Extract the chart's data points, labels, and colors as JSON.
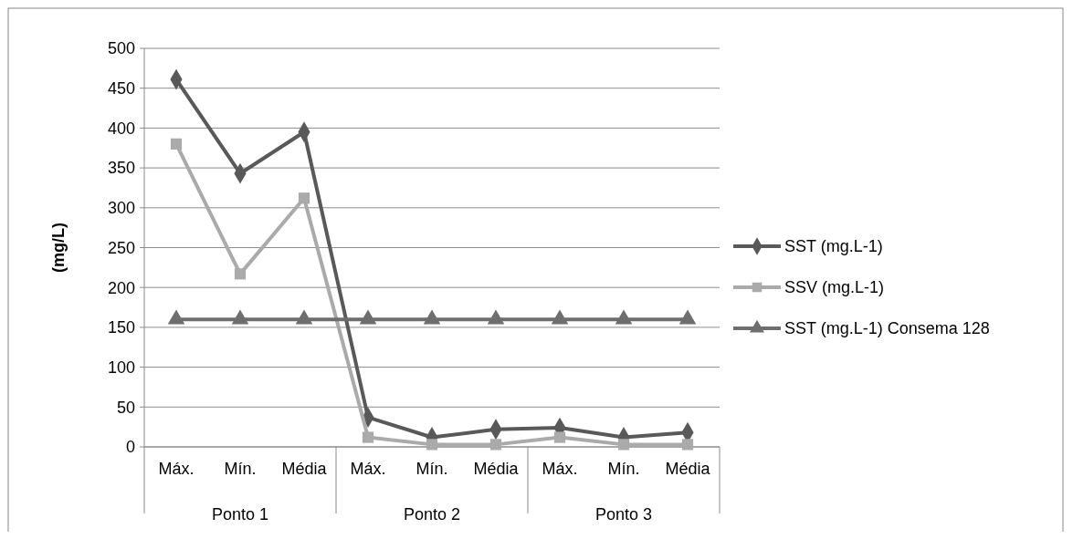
{
  "chart_data": {
    "type": "line",
    "ylabel": "(mg/L)",
    "categories": [
      "Máx.",
      "Mín.",
      "Média",
      "Máx.",
      "Mín.",
      "Média",
      "Máx.",
      "Mín.",
      "Média"
    ],
    "annotations": [
      "Ponto 1",
      "Ponto 2",
      "Ponto 3"
    ],
    "series": [
      {
        "name": "SST (mg.L-1)",
        "color": "#595959",
        "marker": "diamond",
        "values": [
          461,
          343,
          395,
          37,
          12,
          22,
          24,
          12,
          18
        ]
      },
      {
        "name": "SSV (mg.L-1)",
        "color": "#aaaaaa",
        "marker": "square",
        "values": [
          380,
          217,
          312,
          12,
          3,
          3,
          12,
          3,
          3
        ]
      },
      {
        "name": "SST (mg.L-1) Consema 128",
        "color": "#6e6e6e",
        "marker": "triangle",
        "values": [
          160,
          160,
          160,
          160,
          160,
          160,
          160,
          160,
          160
        ]
      }
    ],
    "ylim": [
      0,
      500
    ],
    "yticks": [
      0,
      50,
      100,
      150,
      200,
      250,
      300,
      350,
      400,
      450,
      500
    ],
    "grid": "y",
    "legend": "right"
  }
}
